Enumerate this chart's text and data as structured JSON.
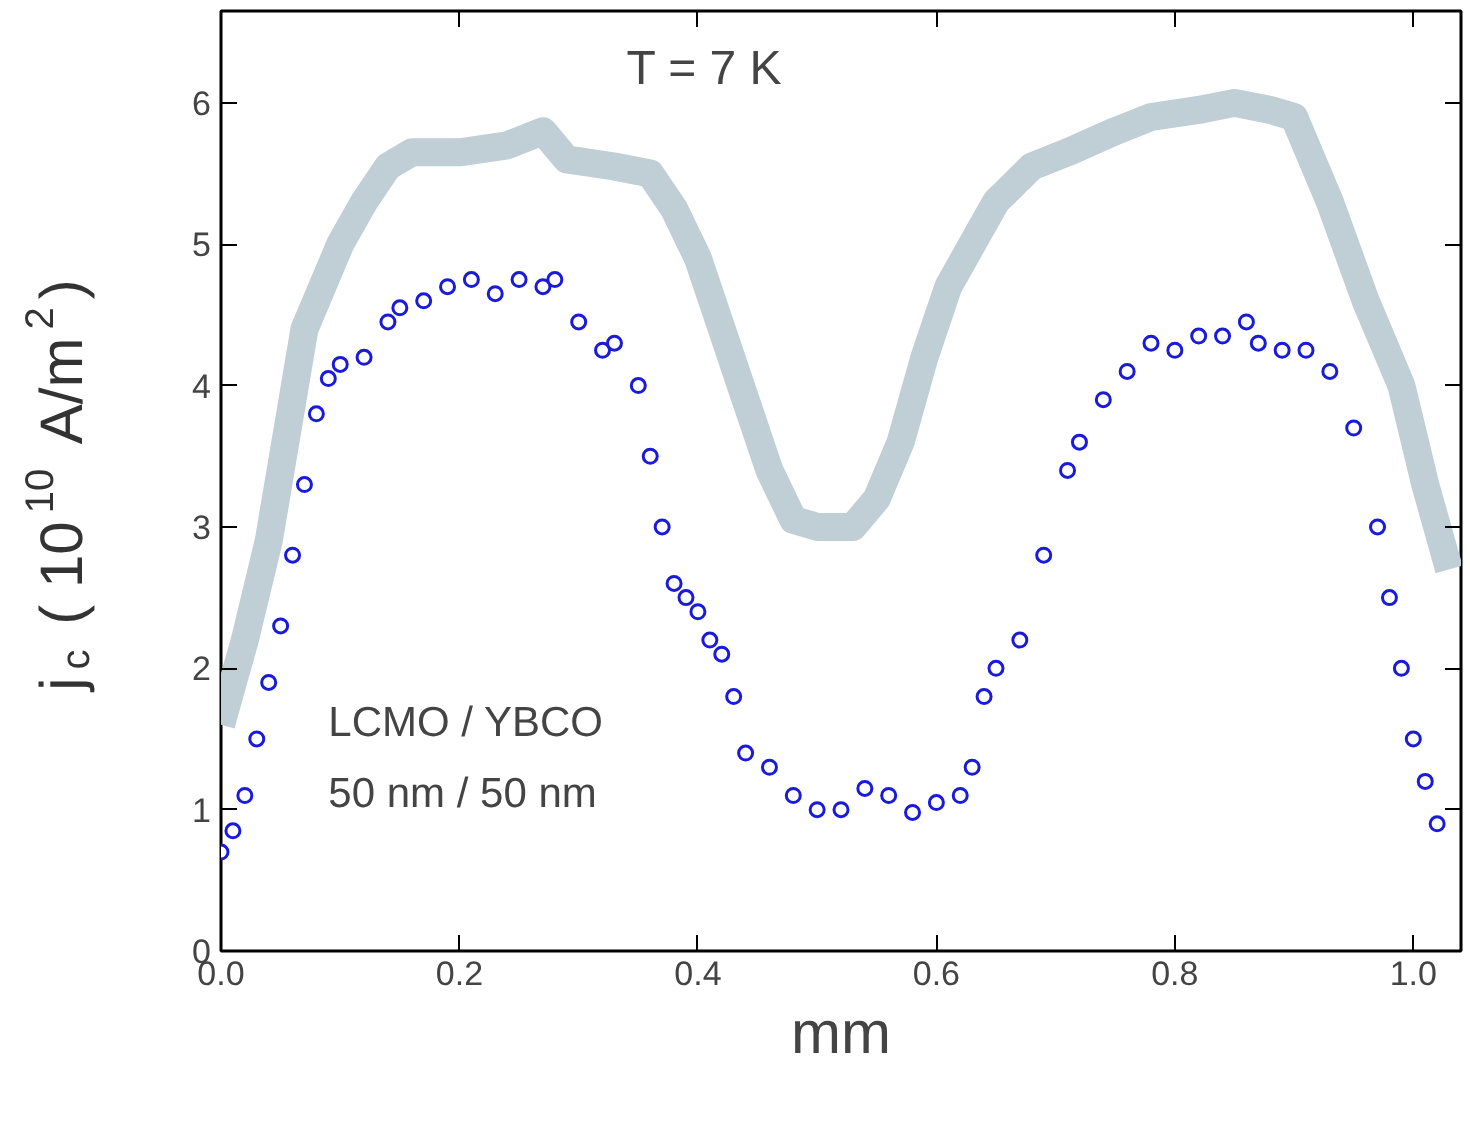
{
  "chart_data": {
    "type": "line",
    "xlabel": "mm",
    "ylabel": "j$_{c}$ ( 10$^{10}$ A/m$^{2}$)",
    "annotations": [
      "T = 7 K",
      "LCMO / YBCO",
      "50 nm / 50 nm"
    ],
    "xlim": [
      0,
      1.04
    ],
    "ylim": [
      0,
      6.65
    ],
    "xticks": [
      {
        "value": 0,
        "label": "0.0"
      },
      {
        "value": 0.2,
        "label": "0.2"
      },
      {
        "value": 0.4,
        "label": "0.4"
      },
      {
        "value": 0.6,
        "label": "0.6"
      },
      {
        "value": 0.8,
        "label": "0.8"
      },
      {
        "value": 1.0,
        "label": "1.0"
      }
    ],
    "yticks": [
      0,
      1,
      2,
      3,
      4,
      5,
      6
    ],
    "grid": false,
    "series": [
      {
        "color": "#c0ced6",
        "marker": "none",
        "x": [
          0.0,
          0.02,
          0.04,
          0.06,
          0.07,
          0.08,
          0.1,
          0.12,
          0.14,
          0.16,
          0.2,
          0.24,
          0.27,
          0.29,
          0.33,
          0.36,
          0.38,
          0.4,
          0.42,
          0.44,
          0.46,
          0.48,
          0.5,
          0.53,
          0.55,
          0.57,
          0.59,
          0.61,
          0.63,
          0.65,
          0.68,
          0.71,
          0.75,
          0.78,
          0.82,
          0.85,
          0.88,
          0.9,
          0.93,
          0.96,
          0.99,
          1.01,
          1.03
        ],
        "values": [
          1.6,
          2.2,
          2.9,
          3.9,
          4.4,
          4.6,
          5.0,
          5.3,
          5.55,
          5.65,
          5.65,
          5.7,
          5.8,
          5.6,
          5.55,
          5.5,
          5.25,
          4.9,
          4.4,
          3.9,
          3.4,
          3.05,
          3.0,
          3.0,
          3.2,
          3.6,
          4.2,
          4.7,
          5.0,
          5.3,
          5.55,
          5.65,
          5.8,
          5.9,
          5.95,
          6.0,
          5.95,
          5.9,
          5.3,
          4.6,
          4.0,
          3.3,
          2.7
        ]
      },
      {
        "type": "scatter",
        "color": "#1a1adc",
        "marker": "circle",
        "x": [
          0.0,
          0.01,
          0.02,
          0.03,
          0.04,
          0.05,
          0.06,
          0.07,
          0.08,
          0.09,
          0.1,
          0.12,
          0.14,
          0.15,
          0.17,
          0.19,
          0.21,
          0.23,
          0.25,
          0.27,
          0.28,
          0.3,
          0.32,
          0.33,
          0.35,
          0.36,
          0.37,
          0.38,
          0.39,
          0.4,
          0.41,
          0.42,
          0.43,
          0.44,
          0.46,
          0.48,
          0.5,
          0.52,
          0.54,
          0.56,
          0.58,
          0.6,
          0.62,
          0.63,
          0.64,
          0.65,
          0.67,
          0.69,
          0.71,
          0.72,
          0.74,
          0.76,
          0.78,
          0.8,
          0.82,
          0.84,
          0.86,
          0.87,
          0.89,
          0.91,
          0.93,
          0.95,
          0.97,
          0.98,
          0.99,
          1.0,
          1.01,
          1.02
        ],
        "values": [
          0.7,
          0.85,
          1.1,
          1.5,
          1.9,
          2.3,
          2.8,
          3.3,
          3.8,
          4.05,
          4.15,
          4.2,
          4.45,
          4.55,
          4.6,
          4.7,
          4.75,
          4.65,
          4.75,
          4.7,
          4.75,
          4.45,
          4.25,
          4.3,
          4.0,
          3.5,
          3.0,
          2.6,
          2.5,
          2.4,
          2.2,
          2.1,
          1.8,
          1.4,
          1.3,
          1.1,
          1.0,
          1.0,
          1.15,
          1.1,
          0.98,
          1.05,
          1.1,
          1.3,
          1.8,
          2.0,
          2.2,
          2.8,
          3.4,
          3.6,
          3.9,
          4.1,
          4.3,
          4.25,
          4.35,
          4.35,
          4.45,
          4.3,
          4.25,
          4.25,
          4.1,
          3.7,
          3.0,
          2.5,
          2.0,
          1.5,
          1.2,
          0.9
        ]
      }
    ]
  }
}
